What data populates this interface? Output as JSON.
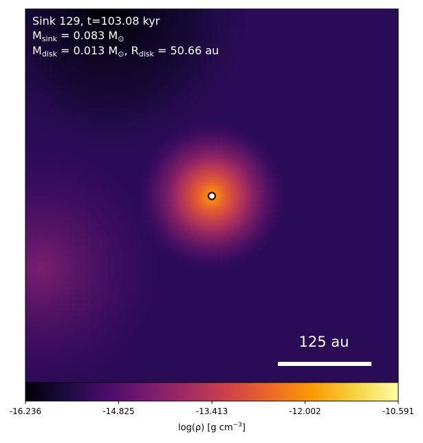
{
  "annotation": {
    "title": "Sink 129, t=103.08 kyr",
    "sink_mass": [
      "M",
      "sink",
      " = 0.083 M",
      "⊙"
    ],
    "disk": [
      "M",
      "disk",
      " = 0.013 M",
      "⊙",
      ", R",
      "disk",
      " = 50.66 au"
    ]
  },
  "scale_bar": {
    "label": "125 au"
  },
  "colorbar": {
    "lim": [
      -16.236,
      -10.591
    ],
    "ticks": [
      -16.236,
      -14.825,
      -13.413,
      -12.002,
      -10.591
    ],
    "label": [
      "log(ρ) [g cm",
      "−3",
      "]"
    ]
  }
}
